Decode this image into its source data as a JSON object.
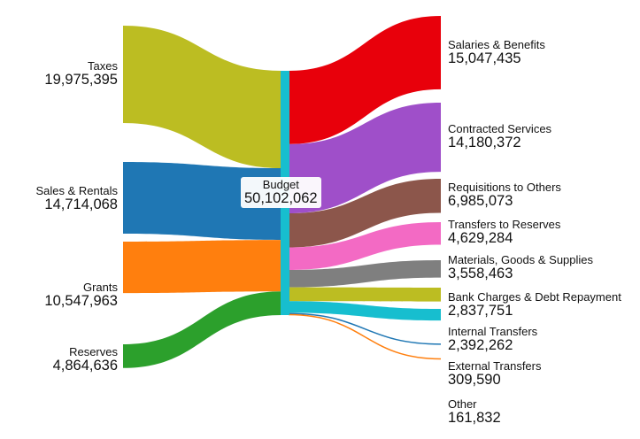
{
  "chart_data": {
    "type": "sankey",
    "center": {
      "label": "Budget",
      "value": "50,102,062",
      "color": "#17becf"
    },
    "sources": [
      {
        "name": "Taxes",
        "value": 19975395,
        "value_text": "19,975,395",
        "color": "#bcbd22"
      },
      {
        "name": "Sales & Rentals",
        "value": 14714068,
        "value_text": "14,714,068",
        "color": "#1f77b4"
      },
      {
        "name": "Grants",
        "value": 10547963,
        "value_text": "10,547,963",
        "color": "#ff7f0e"
      },
      {
        "name": "Reserves",
        "value": 4864636,
        "value_text": "4,864,636",
        "color": "#2ca02c"
      }
    ],
    "targets": [
      {
        "name": "Salaries & Benefits",
        "value": 15047435,
        "value_text": "15,047,435",
        "color": "#e8000b"
      },
      {
        "name": "Contracted Services",
        "value": 14180372,
        "value_text": "14,180,372",
        "color": "#9f4fc9"
      },
      {
        "name": "Requisitions to Others",
        "value": 6985073,
        "value_text": "6,985,073",
        "color": "#8c564b"
      },
      {
        "name": "Transfers to Reserves",
        "value": 4629284,
        "value_text": "4,629,284",
        "color": "#f36ac4"
      },
      {
        "name": "Materials, Goods & Supplies",
        "value": 3558463,
        "value_text": "3,558,463",
        "color": "#7f7f7f"
      },
      {
        "name": "Bank Charges & Debt Repayment",
        "value": 2837751,
        "value_text": "2,837,751",
        "color": "#bcbd22"
      },
      {
        "name": "Internal Transfers",
        "value": 2392262,
        "value_text": "2,392,262",
        "color": "#17becf"
      },
      {
        "name": "External Transfers",
        "value": 309590,
        "value_text": "309,590",
        "color": "#1f77b4"
      },
      {
        "name": "Other",
        "value": 161832,
        "value_text": "161,832",
        "color": "#ff7f0e"
      }
    ]
  }
}
